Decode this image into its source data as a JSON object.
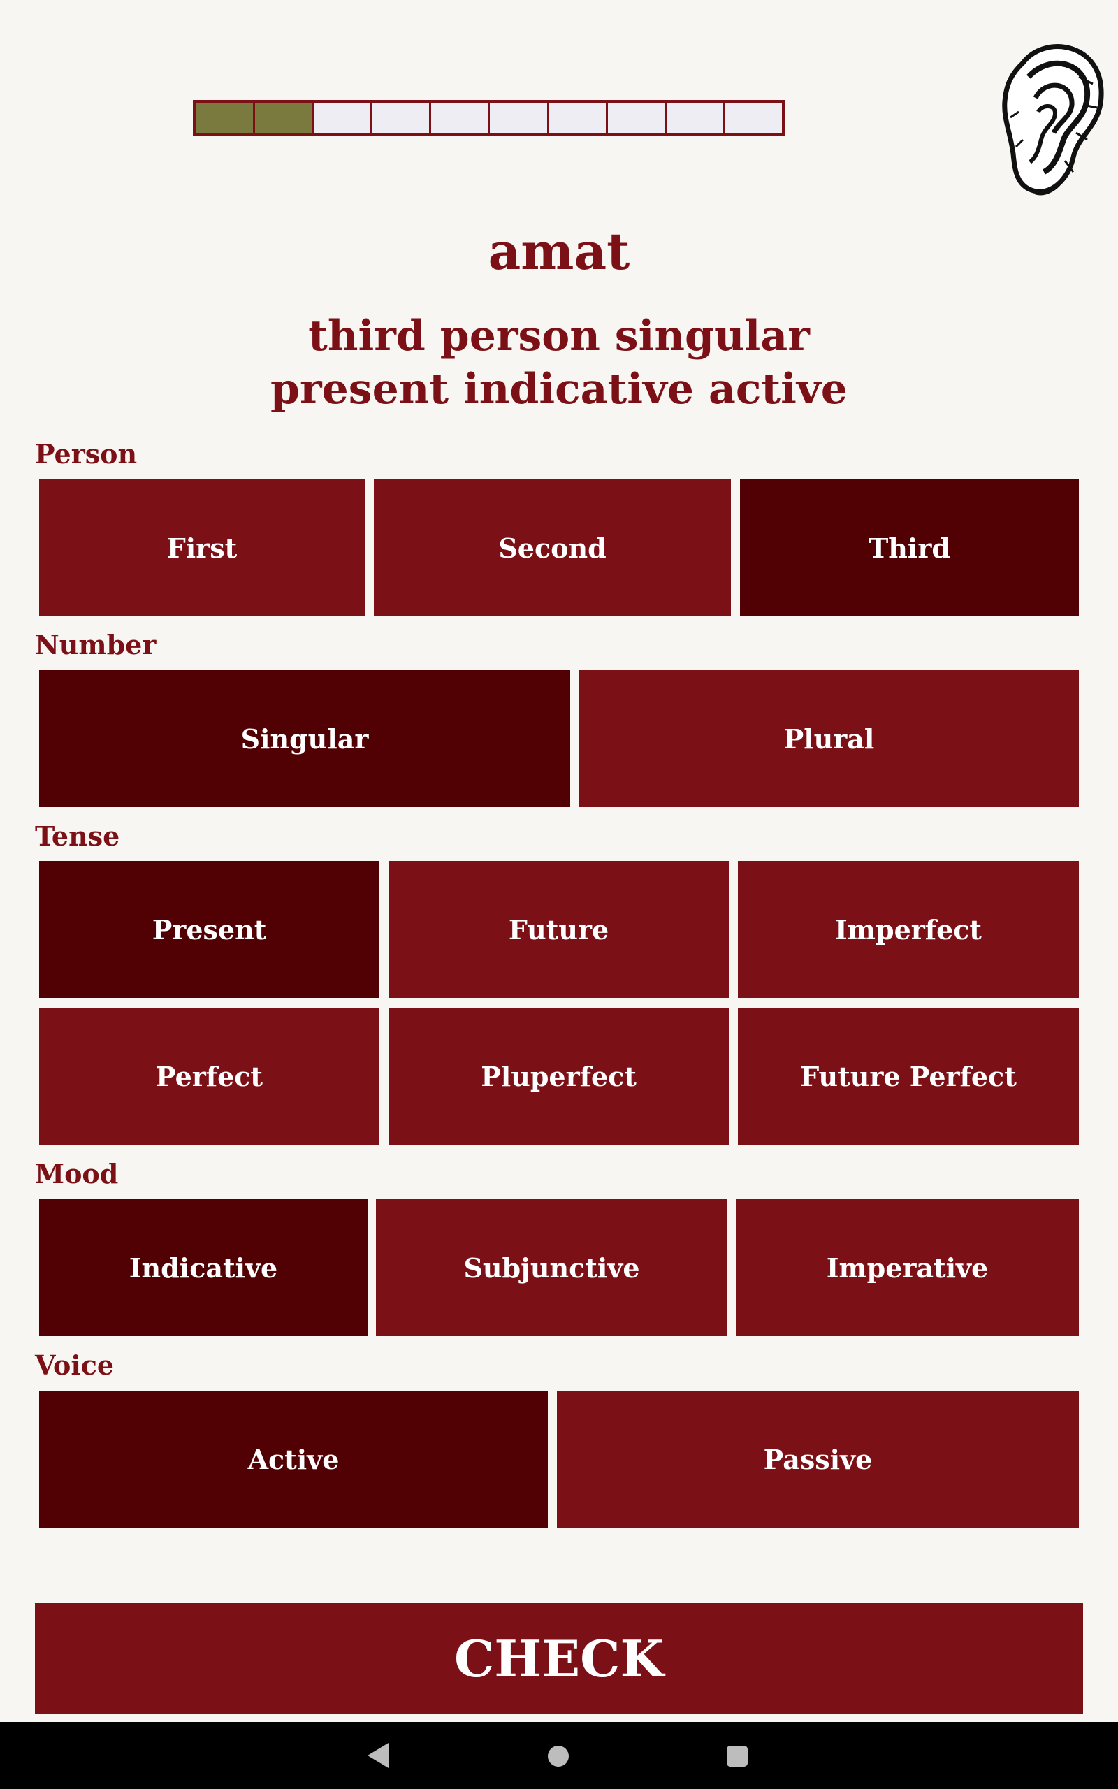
{
  "progress": {
    "completed": 2,
    "total": 10
  },
  "audio": {
    "icon": "ear-icon"
  },
  "prompt": {
    "word": "amat",
    "description_line1": "third person singular",
    "description_line2": "present indicative active"
  },
  "groups": {
    "person": {
      "label": "Person",
      "options": [
        "First",
        "Second",
        "Third"
      ],
      "selected": "Third"
    },
    "number": {
      "label": "Number",
      "options": [
        "Singular",
        "Plural"
      ],
      "selected": "Singular"
    },
    "tense": {
      "label": "Tense",
      "options": [
        "Present",
        "Future",
        "Imperfect",
        "Perfect",
        "Pluperfect",
        "Future Perfect"
      ],
      "selected": "Present"
    },
    "mood": {
      "label": "Mood",
      "options": [
        "Indicative",
        "Subjunctive",
        "Imperative"
      ],
      "selected": "Indicative"
    },
    "voice": {
      "label": "Voice",
      "options": [
        "Active",
        "Passive"
      ],
      "selected": "Active"
    }
  },
  "check_label": "CHECK",
  "colors": {
    "primary": "#7b1116",
    "selected": "#510003",
    "progress_done": "#7a7a3e",
    "progress_empty": "#eeedf4",
    "background": "#f8f6f3"
  }
}
